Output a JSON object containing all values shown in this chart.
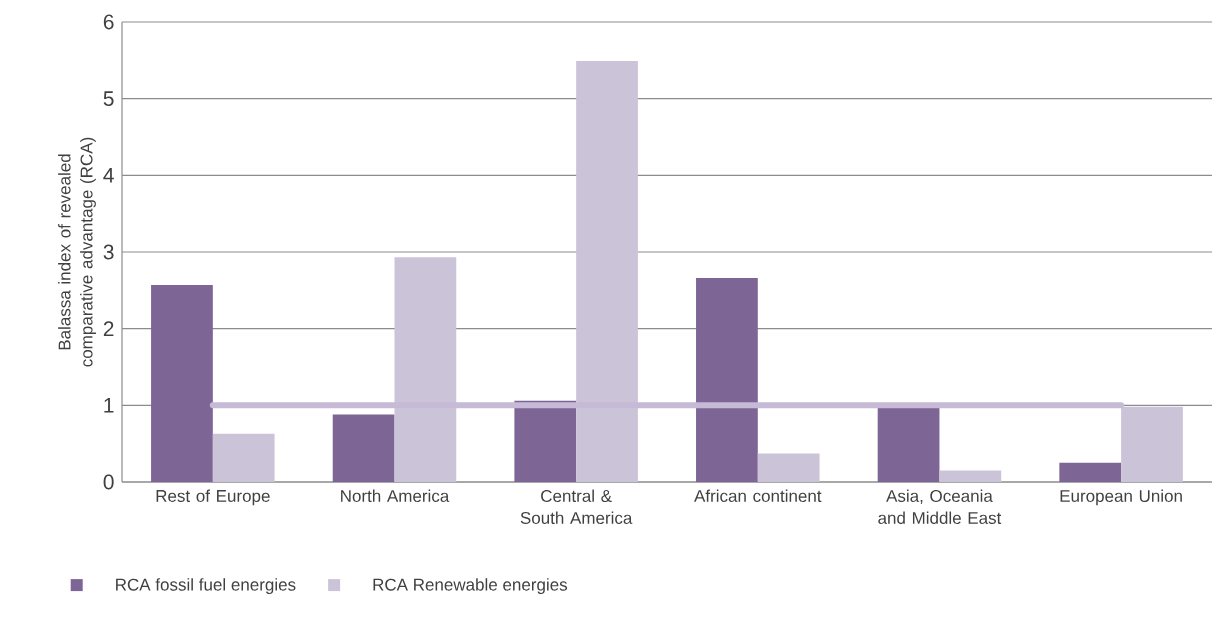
{
  "chart_data": {
    "type": "bar",
    "ylabel": "Balassa index of revealed comparative advantage (RCA)",
    "categories": [
      "Rest of Europe",
      "North America",
      "Central & South America",
      "African continent",
      "Asia, Oceania and Middle East",
      "European Union"
    ],
    "series": [
      {
        "name": "RCA fossil fuel energies",
        "color": "#7d6596",
        "values": [
          2.57,
          0.88,
          1.06,
          2.66,
          1.0,
          0.25
        ]
      },
      {
        "name": "RCA Renewable energies",
        "color": "#cbc4d8",
        "values": [
          0.63,
          2.93,
          5.49,
          0.37,
          0.15,
          0.98
        ]
      }
    ],
    "ref_lines": [
      {
        "axis": "y",
        "value": 1,
        "color": "#c6bad7"
      }
    ],
    "ylim": [
      0,
      6
    ],
    "yticks": [
      0,
      1,
      2,
      3,
      4,
      5,
      6
    ],
    "grid": "y",
    "legend": "bottom"
  }
}
